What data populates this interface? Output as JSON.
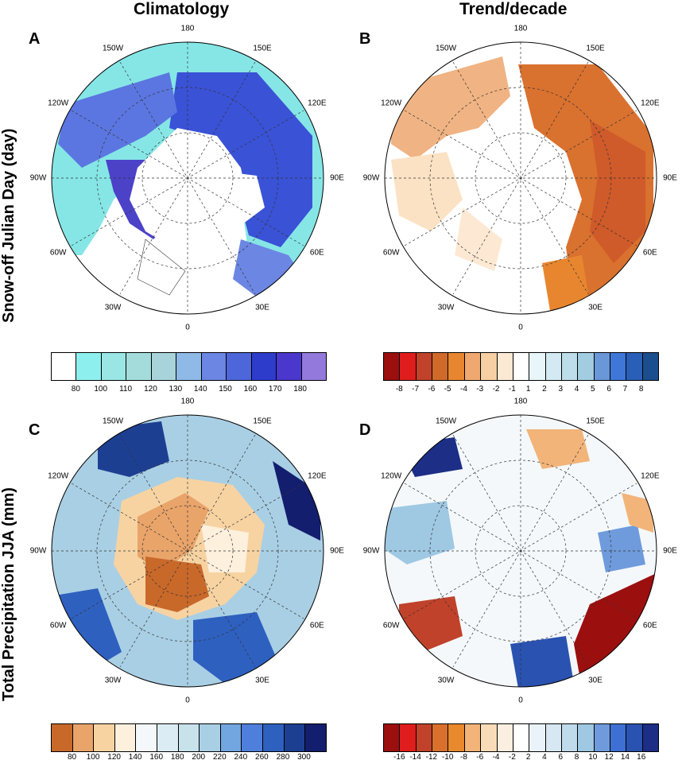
{
  "column_titles": [
    "Climatology",
    "Trend/decade"
  ],
  "row_titles": [
    "Snow-off Julian Day (day)",
    "Total Precipitation JJA (mm)"
  ],
  "panels": [
    {
      "letter": "A",
      "description_key": "snowoff_climatology"
    },
    {
      "letter": "B",
      "description_key": "snowoff_trend"
    },
    {
      "letter": "C",
      "description_key": "precip_climatology"
    },
    {
      "letter": "D",
      "description_key": "precip_trend"
    }
  ],
  "longitude_labels": [
    "180",
    "150E",
    "120E",
    "90E",
    "60E",
    "30E",
    "0",
    "30W",
    "60W",
    "90W",
    "120W",
    "150W"
  ],
  "colorbars": {
    "snowoff_climatology": {
      "labels": [
        "80",
        "100",
        "110",
        "120",
        "130",
        "140",
        "150",
        "160",
        "170",
        "180"
      ],
      "colors": [
        "#ffffff",
        "#8ef0ee",
        "#9ae6e4",
        "#a4dcdc",
        "#a9d3da",
        "#8fb9e6",
        "#6c86e3",
        "#4d66da",
        "#2e3ccc",
        "#4a37cc",
        "#9479dc"
      ]
    },
    "snowoff_trend": {
      "labels": [
        "-8",
        "-7",
        "-6",
        "-5",
        "-4",
        "-3",
        "-2",
        "-1",
        "1",
        "2",
        "3",
        "4",
        "5",
        "6",
        "7",
        "8"
      ],
      "colors": [
        "#9c0f0f",
        "#e01d1d",
        "#c0422a",
        "#cf6a2a",
        "#e8862f",
        "#efa970",
        "#f6cfa2",
        "#fbe9d3",
        "#ffffff",
        "#e8f6fa",
        "#d3eaf2",
        "#bcdde9",
        "#a2cde1",
        "#6a97d8",
        "#3f77d9",
        "#2a5fb8",
        "#1b4e8e"
      ]
    },
    "precip_climatology": {
      "labels": [
        "80",
        "100",
        "120",
        "140",
        "160",
        "180",
        "200",
        "220",
        "240",
        "260",
        "280",
        "300"
      ],
      "colors": [
        "#c8692a",
        "#e9a46a",
        "#f7d3a2",
        "#fdf0dd",
        "#f4f8fb",
        "#dcecf4",
        "#c8e2ec",
        "#a9cfe4",
        "#72a6e0",
        "#4f7fdc",
        "#2e60c0",
        "#1d3f92",
        "#141e6e"
      ]
    },
    "precip_trend": {
      "labels": [
        "-16",
        "-14",
        "-12",
        "-10",
        "-8",
        "-6",
        "-4",
        "-2",
        "2",
        "4",
        "6",
        "8",
        "10",
        "12",
        "14",
        "16"
      ],
      "colors": [
        "#9c0f0f",
        "#e01d1d",
        "#c0422a",
        "#d9702c",
        "#e9892e",
        "#f2b479",
        "#f8dcb8",
        "#fcefe2",
        "#ffffff",
        "#eaf3f9",
        "#d7e8f2",
        "#bfdbeb",
        "#9fc8e3",
        "#6f9bdc",
        "#3d70d2",
        "#2a52b0",
        "#1c2e86"
      ]
    }
  }
}
